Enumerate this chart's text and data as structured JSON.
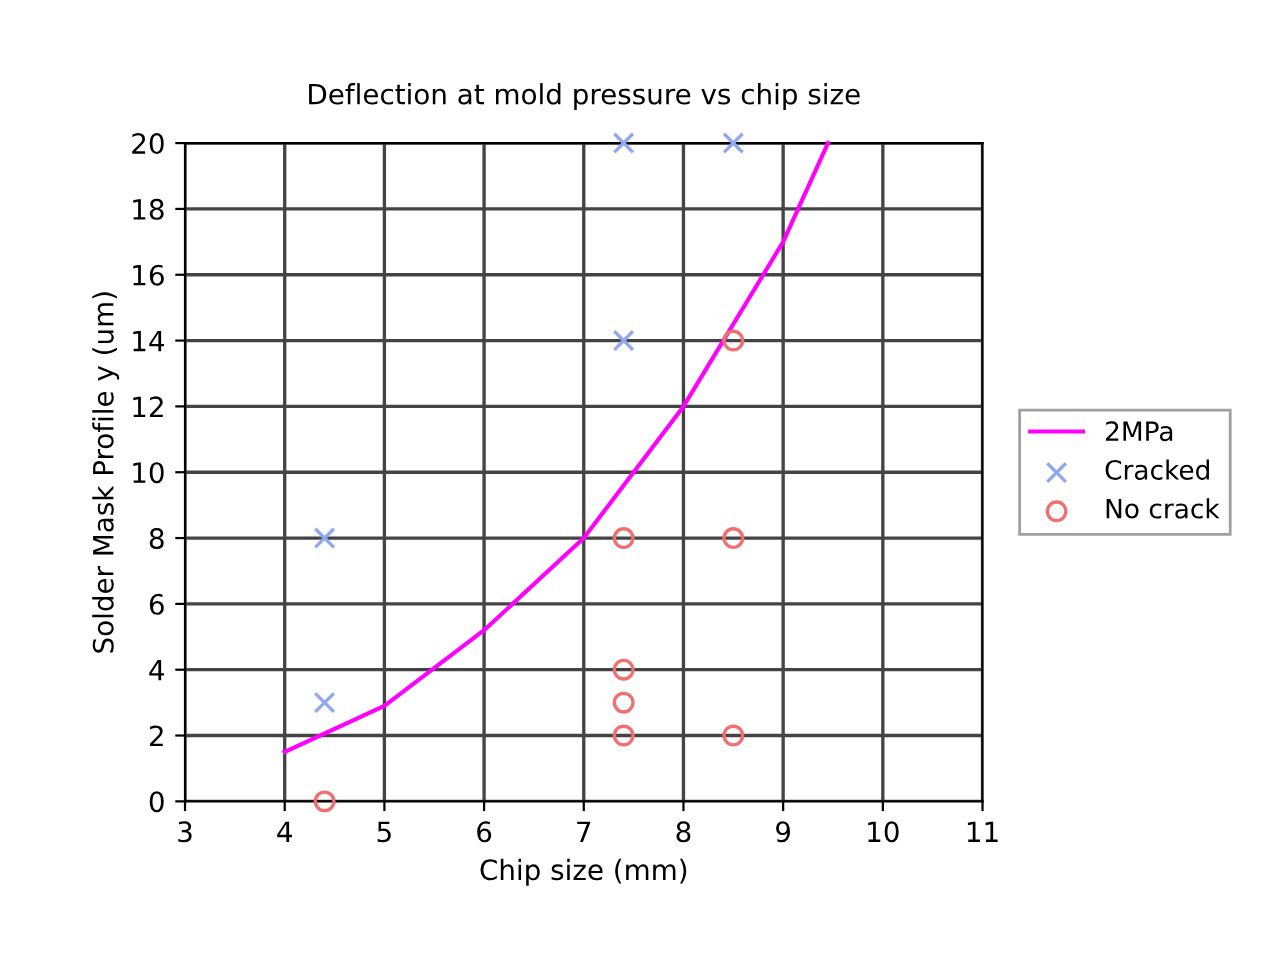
{
  "chart_data": {
    "type": "scatter",
    "title": "Deflection at mold pressure vs chip size",
    "xlabel": "Chip size (mm)",
    "ylabel": "Solder Mask Profile y (um)",
    "series": [
      {
        "name": "2MPa",
        "type": "line",
        "color": "#ff00ff",
        "marker": "none",
        "x": [
          4,
          5,
          6,
          7,
          8,
          9,
          9.45
        ],
        "values": [
          1.5,
          2.9,
          5.2,
          8,
          12,
          17,
          20
        ]
      },
      {
        "name": "Cracked",
        "color": "#8fa8f0",
        "marker": "cross",
        "x": [
          4.4,
          4.4,
          7.4,
          7.4,
          8.5
        ],
        "values": [
          8,
          3,
          20,
          14,
          20
        ]
      },
      {
        "name": "No crack",
        "color": "#f07070",
        "marker": "circle",
        "x": [
          4.4,
          7.4,
          7.4,
          7.4,
          7.4,
          8.5,
          8.5,
          8.5
        ],
        "values": [
          0,
          8,
          4,
          3,
          2,
          14,
          8,
          2
        ]
      }
    ],
    "xlim": [
      3,
      11
    ],
    "ylim": [
      0,
      20
    ],
    "xticks": [
      3,
      4,
      5,
      6,
      7,
      8,
      9,
      10,
      11
    ],
    "yticks": [
      0,
      2,
      4,
      6,
      8,
      10,
      12,
      14,
      16,
      18,
      20
    ],
    "grid": true,
    "legend": "right"
  }
}
